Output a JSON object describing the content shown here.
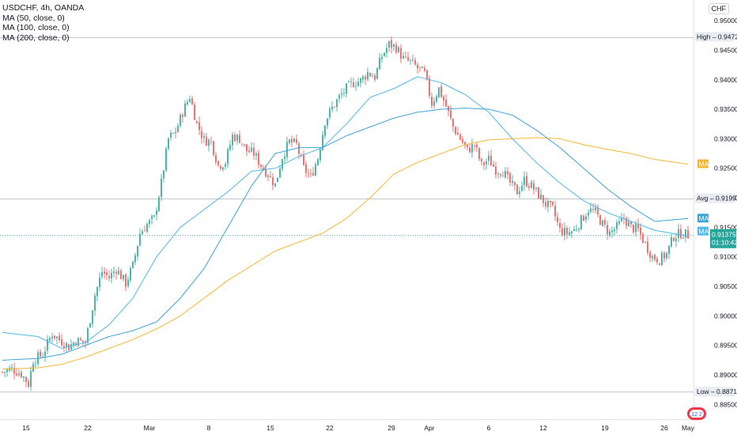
{
  "legend": {
    "symbol": "USDCHF, 4h, OANDA",
    "ma1": "MA (50, close, 0)",
    "ma2": "MA (100, close, 0)",
    "ma3": "MA (200, close, 0)"
  },
  "currency": "CHF",
  "price_labels": {
    "high_label": "High",
    "high_value": "0.94727",
    "avg_label": "Avg",
    "avg_value": "0.91992",
    "low_label": "Low",
    "low_value": "0.88716",
    "last_value": "0.91375",
    "countdown": "01:10:42",
    "ma_tag": "MA"
  },
  "colors": {
    "up": "#26a69a",
    "down": "#ef5350",
    "ma50": "#4fb8e6",
    "ma100": "#3aa3d4",
    "ma200": "#f5b731",
    "last_price": "#26a69a"
  },
  "chart_data": {
    "type": "candlestick",
    "title": "USDCHF, 4h, OANDA",
    "ylim": [
      0.8825,
      0.9535
    ],
    "y_ticks": [
      "0.95000",
      "0.94500",
      "0.94000",
      "0.93500",
      "0.93000",
      "0.92500",
      "0.92000",
      "0.91500",
      "0.91000",
      "0.90500",
      "0.90000",
      "0.89500",
      "0.89000",
      "0.88500"
    ],
    "x_ticks": [
      "15",
      "22",
      "Mar",
      "8",
      "15",
      "22",
      "29",
      "Apr",
      "6",
      "12",
      "19",
      "26",
      "May"
    ],
    "high": 0.94727,
    "avg": 0.91992,
    "low": 0.88716,
    "last": 0.91375,
    "close_anchors": [
      [
        0,
        0.8905
      ],
      [
        4,
        0.891
      ],
      [
        8,
        0.8902
      ],
      [
        11,
        0.8885
      ],
      [
        13,
        0.8925
      ],
      [
        17,
        0.8935
      ],
      [
        21,
        0.897
      ],
      [
        24,
        0.896
      ],
      [
        28,
        0.8948
      ],
      [
        31,
        0.8958
      ],
      [
        35,
        0.8955
      ],
      [
        39,
        0.9035
      ],
      [
        42,
        0.9075
      ],
      [
        45,
        0.9065
      ],
      [
        48,
        0.908
      ],
      [
        52,
        0.9055
      ],
      [
        55,
        0.9085
      ],
      [
        58,
        0.914
      ],
      [
        61,
        0.9155
      ],
      [
        64,
        0.9165
      ],
      [
        67,
        0.9225
      ],
      [
        70,
        0.93
      ],
      [
        73,
        0.9312
      ],
      [
        76,
        0.9345
      ],
      [
        79,
        0.9372
      ],
      [
        82,
        0.9325
      ],
      [
        85,
        0.9298
      ],
      [
        88,
        0.9295
      ],
      [
        91,
        0.9255
      ],
      [
        94,
        0.926
      ],
      [
        97,
        0.9305
      ],
      [
        100,
        0.93
      ],
      [
        103,
        0.928
      ],
      [
        106,
        0.9275
      ],
      [
        109,
        0.9255
      ],
      [
        112,
        0.924
      ],
      [
        115,
        0.9222
      ],
      [
        118,
        0.927
      ],
      [
        121,
        0.9295
      ],
      [
        124,
        0.929
      ],
      [
        127,
        0.925
      ],
      [
        130,
        0.9235
      ],
      [
        133,
        0.9268
      ],
      [
        136,
        0.933
      ],
      [
        139,
        0.9352
      ],
      [
        142,
        0.937
      ],
      [
        145,
        0.9385
      ],
      [
        148,
        0.9395
      ],
      [
        151,
        0.9398
      ],
      [
        154,
        0.9412
      ],
      [
        157,
        0.9405
      ],
      [
        160,
        0.944
      ],
      [
        163,
        0.946
      ],
      [
        166,
        0.9455
      ],
      [
        169,
        0.9435
      ],
      [
        172,
        0.943
      ],
      [
        175,
        0.942
      ],
      [
        178,
        0.941
      ],
      [
        181,
        0.936
      ],
      [
        184,
        0.9385
      ],
      [
        187,
        0.9355
      ],
      [
        190,
        0.932
      ],
      [
        193,
        0.93
      ],
      [
        196,
        0.928
      ],
      [
        199,
        0.929
      ],
      [
        202,
        0.9255
      ],
      [
        205,
        0.9265
      ],
      [
        208,
        0.9248
      ],
      [
        211,
        0.9245
      ],
      [
        214,
        0.9225
      ],
      [
        217,
        0.921
      ],
      [
        220,
        0.923
      ],
      [
        223,
        0.922
      ],
      [
        226,
        0.9205
      ],
      [
        229,
        0.919
      ],
      [
        232,
        0.918
      ],
      [
        235,
        0.9145
      ],
      [
        238,
        0.914
      ],
      [
        241,
        0.9145
      ],
      [
        244,
        0.9162
      ],
      [
        247,
        0.918
      ],
      [
        250,
        0.9175
      ],
      [
        253,
        0.9155
      ],
      [
        256,
        0.914
      ],
      [
        259,
        0.915
      ],
      [
        262,
        0.9165
      ],
      [
        265,
        0.915
      ],
      [
        268,
        0.9145
      ],
      [
        271,
        0.9122
      ],
      [
        274,
        0.91
      ],
      [
        277,
        0.9095
      ],
      [
        280,
        0.9105
      ],
      [
        283,
        0.9135
      ],
      [
        286,
        0.914
      ],
      [
        289,
        0.9137
      ]
    ],
    "ma50": [
      [
        0,
        0.8972
      ],
      [
        15,
        0.8965
      ],
      [
        25,
        0.8945
      ],
      [
        35,
        0.8955
      ],
      [
        45,
        0.8985
      ],
      [
        55,
        0.903
      ],
      [
        65,
        0.91
      ],
      [
        75,
        0.915
      ],
      [
        85,
        0.918
      ],
      [
        95,
        0.921
      ],
      [
        105,
        0.9245
      ],
      [
        115,
        0.925
      ],
      [
        125,
        0.927
      ],
      [
        135,
        0.9285
      ],
      [
        145,
        0.9325
      ],
      [
        155,
        0.937
      ],
      [
        165,
        0.9385
      ],
      [
        175,
        0.9405
      ],
      [
        185,
        0.9395
      ],
      [
        195,
        0.9375
      ],
      [
        205,
        0.9345
      ],
      [
        215,
        0.93
      ],
      [
        225,
        0.926
      ],
      [
        235,
        0.9225
      ],
      [
        245,
        0.9195
      ],
      [
        255,
        0.9175
      ],
      [
        265,
        0.916
      ],
      [
        275,
        0.9145
      ],
      [
        289,
        0.9135
      ]
    ],
    "ma100": [
      [
        0,
        0.8925
      ],
      [
        15,
        0.8928
      ],
      [
        25,
        0.8935
      ],
      [
        35,
        0.895
      ],
      [
        45,
        0.8965
      ],
      [
        55,
        0.8975
      ],
      [
        65,
        0.899
      ],
      [
        75,
        0.903
      ],
      [
        85,
        0.908
      ],
      [
        95,
        0.915
      ],
      [
        105,
        0.922
      ],
      [
        115,
        0.9275
      ],
      [
        125,
        0.9285
      ],
      [
        135,
        0.9285
      ],
      [
        145,
        0.9305
      ],
      [
        155,
        0.932
      ],
      [
        165,
        0.9335
      ],
      [
        175,
        0.9345
      ],
      [
        185,
        0.935
      ],
      [
        195,
        0.9352
      ],
      [
        205,
        0.935
      ],
      [
        215,
        0.934
      ],
      [
        225,
        0.9315
      ],
      [
        235,
        0.9285
      ],
      [
        245,
        0.925
      ],
      [
        255,
        0.9215
      ],
      [
        265,
        0.9185
      ],
      [
        275,
        0.916
      ],
      [
        289,
        0.9165
      ]
    ],
    "ma200": [
      [
        0,
        0.891
      ],
      [
        15,
        0.8912
      ],
      [
        25,
        0.8918
      ],
      [
        35,
        0.893
      ],
      [
        45,
        0.8945
      ],
      [
        55,
        0.896
      ],
      [
        65,
        0.8978
      ],
      [
        75,
        0.9
      ],
      [
        85,
        0.903
      ],
      [
        95,
        0.906
      ],
      [
        105,
        0.9085
      ],
      [
        115,
        0.911
      ],
      [
        125,
        0.9125
      ],
      [
        135,
        0.914
      ],
      [
        145,
        0.9165
      ],
      [
        155,
        0.92
      ],
      [
        165,
        0.924
      ],
      [
        175,
        0.926
      ],
      [
        185,
        0.9275
      ],
      [
        195,
        0.929
      ],
      [
        205,
        0.9298
      ],
      [
        215,
        0.93
      ],
      [
        225,
        0.9302
      ],
      [
        235,
        0.93
      ],
      [
        245,
        0.929
      ],
      [
        255,
        0.9282
      ],
      [
        265,
        0.9275
      ],
      [
        275,
        0.9265
      ],
      [
        289,
        0.9257
      ]
    ]
  }
}
